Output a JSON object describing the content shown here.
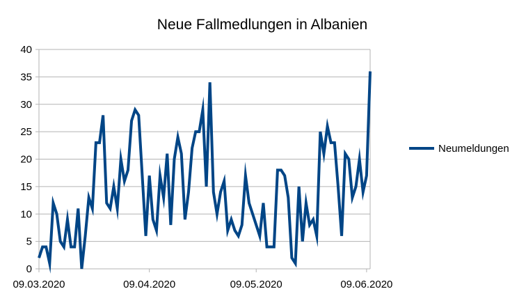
{
  "chart_data": {
    "type": "line",
    "title": "Neue Fallmedlungen in Albanien",
    "xlabel": "",
    "ylabel": "",
    "ylim": [
      0,
      40
    ],
    "yticks": [
      0,
      5,
      10,
      15,
      20,
      25,
      30,
      35,
      40
    ],
    "xticks": [
      "09.03.2020",
      "09.04.2020",
      "09.05.2020",
      "09.06.2020"
    ],
    "grid": "horizontal",
    "legend_position": "right",
    "color": "#004586",
    "series": [
      {
        "name": "Neumeldungen",
        "values": [
          2,
          4,
          4,
          1,
          12,
          10,
          5,
          4,
          9,
          4,
          4,
          11,
          0,
          6,
          13,
          11,
          23,
          23,
          28,
          12,
          11,
          15,
          11,
          20,
          16,
          18,
          27,
          29,
          28,
          17,
          6,
          17,
          9,
          7,
          17,
          13,
          21,
          8,
          20,
          24,
          21,
          9,
          14,
          22,
          25,
          25,
          29,
          15,
          34,
          14,
          10,
          14,
          16,
          7,
          9,
          7,
          6,
          8,
          17,
          12,
          10,
          8,
          6,
          12,
          4,
          4,
          4,
          18,
          18,
          17,
          13,
          2,
          1,
          15,
          5,
          12,
          8,
          9,
          6,
          25,
          21,
          26,
          23,
          23,
          15,
          6,
          21,
          20,
          13,
          15,
          20,
          14,
          17,
          36
        ]
      }
    ]
  }
}
